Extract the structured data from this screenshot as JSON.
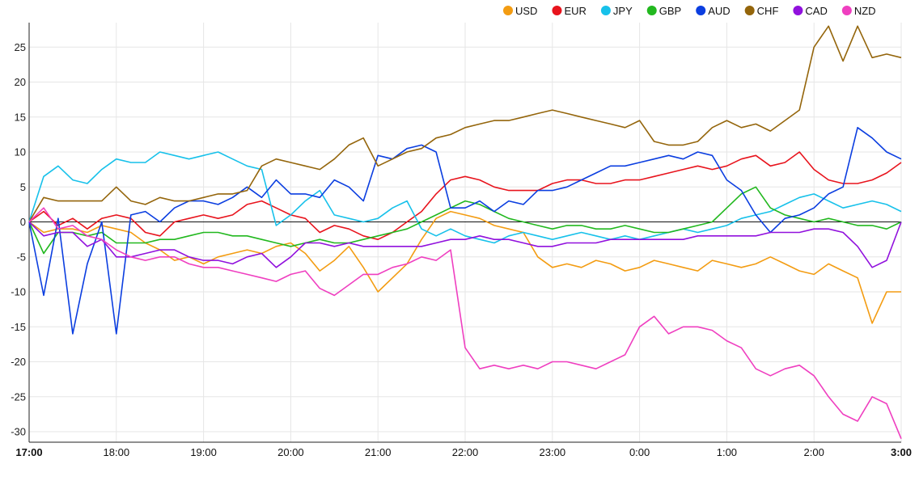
{
  "chart_data": {
    "type": "line",
    "title": "",
    "xlabel": "",
    "ylabel": "",
    "ylim": [
      -31.5,
      28.5
    ],
    "yticks": [
      -30,
      -25,
      -20,
      -15,
      -10,
      -5,
      0,
      5,
      10,
      15,
      20,
      25
    ],
    "xticks": [
      {
        "label": "17:00",
        "x": 0,
        "bold": true
      },
      {
        "label": "18:00",
        "x": 6
      },
      {
        "label": "19:00",
        "x": 12
      },
      {
        "label": "20:00",
        "x": 18
      },
      {
        "label": "21:00",
        "x": 24
      },
      {
        "label": "22:00",
        "x": 30
      },
      {
        "label": "23:00",
        "x": 36
      },
      {
        "label": "0:00",
        "x": 42
      },
      {
        "label": "1:00",
        "x": 48
      },
      {
        "label": "2:00",
        "x": 54
      },
      {
        "label": "3:00",
        "x": 60,
        "bold": true
      }
    ],
    "xlim": [
      0,
      60
    ],
    "x_step_hours": 1,
    "grid": true,
    "legend_position": "top-right",
    "series": [
      {
        "name": "USD",
        "color": "#f39c12",
        "values": [
          0,
          -1.5,
          -1,
          -1,
          -1.5,
          -0.5,
          -1,
          -1.5,
          -3,
          -4,
          -5.5,
          -5,
          -6,
          -5,
          -4.5,
          -4,
          -4.5,
          -3.5,
          -3,
          -4.5,
          -7,
          -5.5,
          -3.5,
          -6.5,
          -10,
          -8,
          -6,
          -2.5,
          0.5,
          1.5,
          1,
          0.5,
          -0.5,
          -1,
          -1.5,
          -5,
          -6.5,
          -6,
          -6.5,
          -5.5,
          -6,
          -7,
          -6.5,
          -5.5,
          -6,
          -6.5,
          -7,
          -5.5,
          -6,
          -6.5,
          -6,
          -5,
          -6,
          -7,
          -7.5,
          -6,
          -7,
          -8,
          -14.5,
          -10,
          -10
        ]
      },
      {
        "name": "EUR",
        "color": "#e8141d",
        "values": [
          0,
          1.5,
          -0.5,
          0.5,
          -1,
          0.5,
          1,
          0.5,
          -1.5,
          -2,
          0,
          0.5,
          1,
          0.5,
          1,
          2.5,
          3,
          2,
          1,
          0.5,
          -1.5,
          -0.5,
          -1,
          -2,
          -2.5,
          -1.5,
          0,
          1.5,
          4,
          6,
          6.5,
          6,
          5,
          4.5,
          4.5,
          4.5,
          5.5,
          6,
          6,
          5.5,
          5.5,
          6,
          6,
          6.5,
          7,
          7.5,
          8,
          7.5,
          8,
          9,
          9.5,
          8,
          8.5,
          10,
          7.5,
          6,
          5.5,
          5.5,
          6,
          7,
          8.5
        ]
      },
      {
        "name": "JPY",
        "color": "#17c1ea",
        "values": [
          0,
          6.5,
          8,
          6,
          5.5,
          7.5,
          9,
          8.5,
          8.5,
          10,
          9.5,
          9,
          9.5,
          10,
          9,
          8,
          7.5,
          -0.5,
          1,
          3,
          4.5,
          1,
          0.5,
          0,
          0.5,
          2,
          3,
          -1,
          -2,
          -1,
          -2,
          -2.5,
          -3,
          -2,
          -1.5,
          -2,
          -2.5,
          -2,
          -1.5,
          -2,
          -2.5,
          -2,
          -2.5,
          -2,
          -1.5,
          -1,
          -1.5,
          -1,
          -0.5,
          0.5,
          1,
          1.5,
          2.5,
          3.5,
          4,
          3,
          2,
          2.5,
          3,
          2.5,
          1.5
        ]
      },
      {
        "name": "GBP",
        "color": "#22b81f",
        "values": [
          0,
          -4.5,
          -1.5,
          -1.5,
          -2,
          -1.5,
          -3,
          -3,
          -3,
          -2.5,
          -2.5,
          -2,
          -1.5,
          -1.5,
          -2,
          -2,
          -2.5,
          -3,
          -3.5,
          -3,
          -2.5,
          -3,
          -3,
          -2.5,
          -2,
          -1.5,
          -1,
          0,
          1,
          2,
          3,
          2.5,
          1.5,
          0.5,
          0,
          -0.5,
          -1,
          -0.5,
          -0.5,
          -1,
          -1,
          -0.5,
          -1,
          -1.5,
          -1.5,
          -1,
          -0.5,
          0,
          2,
          4,
          5,
          2,
          1,
          0.5,
          0,
          0.5,
          0,
          -0.5,
          -0.5,
          -1,
          0
        ]
      },
      {
        "name": "AUD",
        "color": "#0b3ee0",
        "values": [
          0,
          -10.5,
          0.5,
          -16,
          -6,
          0,
          -16,
          1,
          1.5,
          0,
          2,
          3,
          3,
          2.5,
          3.5,
          5,
          3.5,
          6,
          4,
          4,
          3.5,
          6,
          5,
          3,
          9.5,
          9,
          10.5,
          11,
          10,
          2,
          2,
          3,
          1.5,
          3,
          2.5,
          4.5,
          4.5,
          5,
          6,
          7,
          8,
          8,
          8.5,
          9,
          9.5,
          9,
          10,
          9.5,
          6,
          4.5,
          1,
          -1.5,
          0.5,
          1,
          2,
          4,
          5,
          13.5,
          12,
          10,
          9
        ]
      },
      {
        "name": "CHF",
        "color": "#94650b",
        "values": [
          0,
          3.5,
          3,
          3,
          3,
          3,
          5,
          3,
          2.5,
          3.5,
          3,
          3,
          3.5,
          4,
          4,
          4.5,
          8,
          9,
          8.5,
          8,
          7.5,
          9,
          11,
          12,
          8,
          9,
          10,
          10.5,
          12,
          12.5,
          13.5,
          14,
          14.5,
          14.5,
          15,
          15.5,
          16,
          15.5,
          15,
          14.5,
          14,
          13.5,
          14.5,
          11.5,
          11,
          11,
          11.5,
          13.5,
          14.5,
          13.5,
          14,
          13,
          14.5,
          16,
          25,
          28,
          23,
          28,
          23.5,
          24,
          23.5
        ]
      },
      {
        "name": "CAD",
        "color": "#9111dd",
        "values": [
          0,
          -2,
          -1.5,
          -1.5,
          -3.5,
          -2.5,
          -5,
          -5,
          -4.5,
          -4,
          -4,
          -5,
          -5.5,
          -5.5,
          -6,
          -5,
          -4.5,
          -6.5,
          -5,
          -3,
          -3,
          -3.5,
          -3,
          -3.5,
          -3.5,
          -3.5,
          -3.5,
          -3.5,
          -3,
          -2.5,
          -2.5,
          -2,
          -2.5,
          -2.5,
          -3,
          -3.5,
          -3.5,
          -3,
          -3,
          -3,
          -2.5,
          -2.5,
          -2.5,
          -2.5,
          -2.5,
          -2.5,
          -2,
          -2,
          -2,
          -2,
          -2,
          -1.5,
          -1.5,
          -1.5,
          -1,
          -1,
          -1.5,
          -3.5,
          -6.5,
          -5.5,
          0
        ]
      },
      {
        "name": "NZD",
        "color": "#ef3fc0",
        "values": [
          0,
          2,
          -1,
          -0.5,
          -2,
          -2.5,
          -4,
          -5,
          -5.5,
          -5,
          -5,
          -6,
          -6.5,
          -6.5,
          -7,
          -7.5,
          -8,
          -8.5,
          -7.5,
          -7,
          -9.5,
          -10.5,
          -9,
          -7.5,
          -7.5,
          -6.5,
          -6,
          -5,
          -5.5,
          -4,
          -18,
          -21,
          -20.5,
          -21,
          -20.5,
          -21,
          -20,
          -20,
          -20.5,
          -21,
          -20,
          -19,
          -15,
          -13.5,
          -16,
          -15,
          -15,
          -15.5,
          -17,
          -18,
          -21,
          -22,
          -21,
          -20.5,
          -22,
          -25,
          -27.5,
          -28.5,
          -25,
          -26,
          -31
        ]
      }
    ]
  }
}
